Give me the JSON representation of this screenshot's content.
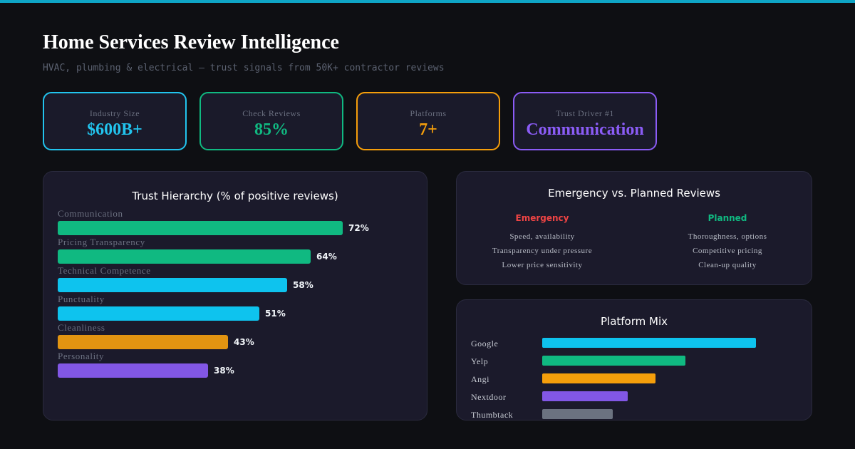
{
  "header": {
    "title": "Home Services Review Intelligence",
    "subtitle": "HVAC, plumbing & electrical — trust signals from 50K+ contractor reviews"
  },
  "stats": [
    {
      "label": "Industry Size",
      "value": "$600B+",
      "color": "#22c4ee"
    },
    {
      "label": "Check Reviews",
      "value": "85%",
      "color": "#10b981"
    },
    {
      "label": "Platforms",
      "value": "7+",
      "color": "#f59e0b"
    },
    {
      "label": "Trust Driver #1",
      "value": "Communication",
      "color": "#8b5cf6"
    }
  ],
  "trust_panel": {
    "title": "Trust Hierarchy (% of positive reviews)"
  },
  "emergency_panel": {
    "title": "Emergency vs. Planned Reviews",
    "emergency": {
      "heading": "Emergency",
      "color": "#ef4444",
      "items": [
        "Speed, availability",
        "Transparency under pressure",
        "Lower price sensitivity"
      ]
    },
    "planned": {
      "heading": "Planned",
      "color": "#10b981",
      "items": [
        "Thoroughness, options",
        "Competitive pricing",
        "Clean-up quality"
      ]
    }
  },
  "platform_panel": {
    "title": "Platform Mix"
  },
  "chart_data": [
    {
      "type": "bar",
      "orientation": "horizontal",
      "title": "Trust Hierarchy (% of positive reviews)",
      "categories": [
        "Communication",
        "Pricing Transparency",
        "Technical Competence",
        "Punctuality",
        "Cleanliness",
        "Personality"
      ],
      "values": [
        72,
        64,
        58,
        51,
        43,
        38
      ],
      "value_labels": [
        "72%",
        "64%",
        "58%",
        "51%",
        "43%",
        "38%"
      ],
      "colors": [
        "#10b981",
        "#10b981",
        "#0ec3ee",
        "#0ec3ee",
        "#e29411",
        "#8257e5"
      ],
      "xlim": [
        0,
        100
      ]
    },
    {
      "type": "bar",
      "orientation": "horizontal",
      "title": "Platform Mix",
      "categories": [
        "Google",
        "Yelp",
        "Angi",
        "Nextdoor",
        "Thumbtack"
      ],
      "values": [
        100,
        67,
        53,
        40,
        33
      ],
      "colors": [
        "#0ec3ee",
        "#10b981",
        "#f59e0b",
        "#8257e5",
        "#6b7280"
      ],
      "xlim": [
        0,
        100
      ]
    }
  ]
}
